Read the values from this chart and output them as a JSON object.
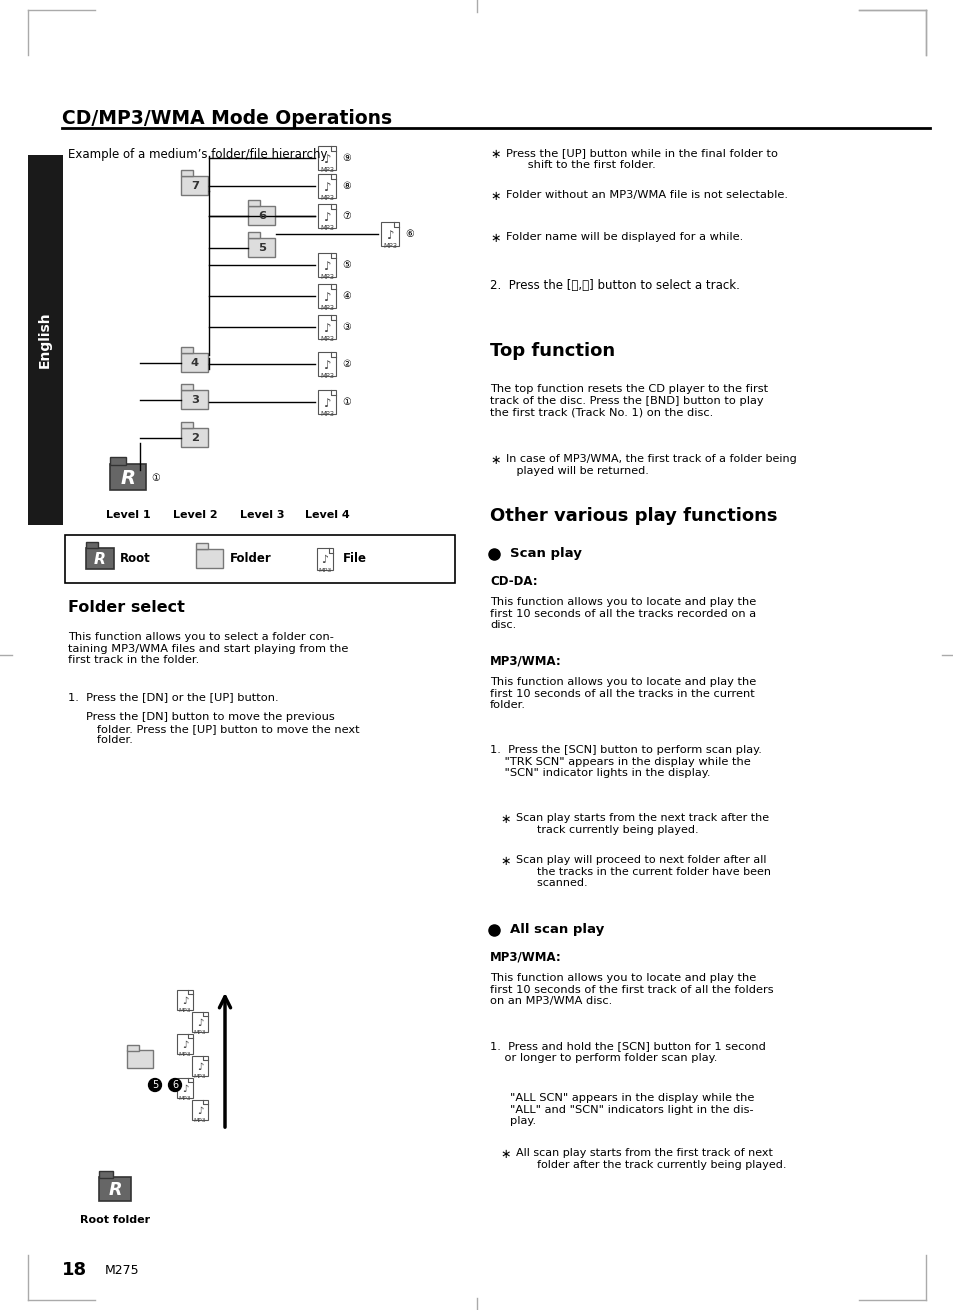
{
  "title": "CD/MP3/WMA Mode Operations",
  "page_num": "18",
  "model": "M275",
  "sidebar_text": "English",
  "bg_color": "#ffffff",
  "sidebar_bg": "#1a1a1a",
  "content": {
    "hierarchy_title": "Example of a medium’s folder/file hierarchy",
    "bullet_items_top": [
      "Press the [UP] button while in the final folder to\n      shift to the first folder.",
      "Folder without an MP3/WMA file is not selectable.",
      "Folder name will be displayed for a while."
    ],
    "item2": "2.  Press the [⏮,⏭] button to select a track.",
    "section_top": "Top function",
    "top_function_body": "The top function resets the CD player to the first\ntrack of the disc. Press the [BND] button to play\nthe first track (Track No. 1) on the disc.",
    "top_function_note": "In case of MP3/WMA, the first track of a folder being\n   played will be returned.",
    "section_other": "Other various play functions",
    "scan_play_header": "Scan play",
    "cd_da_header": "CD-DA:",
    "cd_da_body": "This function allows you to locate and play the\nfirst 10 seconds of all the tracks recorded on a\ndisc.",
    "mp3wma_header": "MP3/WMA:",
    "mp3wma_body": "This function allows you to locate and play the\nfirst 10 seconds of all the tracks in the current\nfolder.",
    "step1_scan": "1.  Press the [SCN] button to perform scan play.\n    \"TRK SCN\" appears in the display while the\n    \"SCN\" indicator lights in the display.",
    "bullet_scan1": "Scan play starts from the next track after the\n      track currently being played.",
    "bullet_scan2": "Scan play will proceed to next folder after all\n      the tracks in the current folder have been\n      scanned.",
    "all_scan_header": "All scan play",
    "mp3wma_header2": "MP3/WMA:",
    "all_scan_body": "This function allows you to locate and play the\nfirst 10 seconds of the first track of all the folders\non an MP3/WMA disc.",
    "step1_all": "1.  Press and hold the [SCN] button for 1 second\n    or longer to perform folder scan play.",
    "all_scn_display": "\"ALL SCN\" appears in the display while the\n\"ALL\" and \"SCN\" indicators light in the dis-\nplay.",
    "all_scan_note": "All scan play starts from the first track of next\n      folder after the track currently being played.",
    "folder_select_title": "Folder select",
    "folder_select_body1": "This function allows you to select a folder con-\ntaining MP3/WMA files and start playing from the\nfirst track in the folder.",
    "step1_folder": "1.  Press the [DN] or the [UP] button.",
    "folder_step1_detail": "Press the [DN] button to move the previous\n   folder. Press the [UP] button to move the next\n   folder.",
    "root_folder_label": "Root folder",
    "level_labels": [
      "Level 1",
      "Level 2",
      "Level 3",
      "Level 4"
    ]
  }
}
